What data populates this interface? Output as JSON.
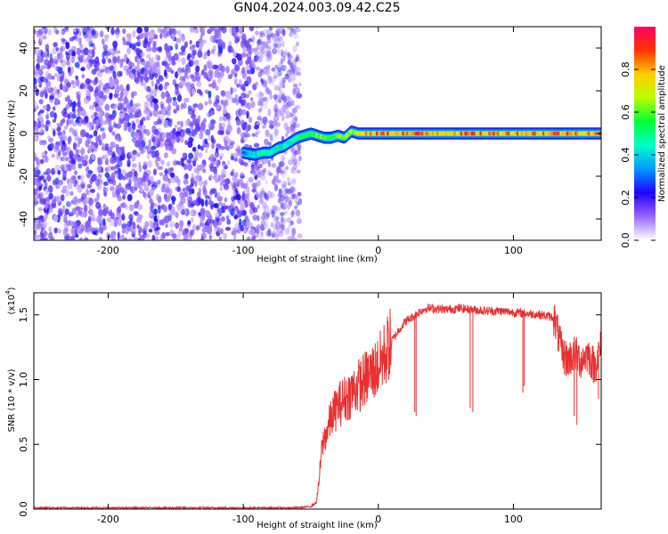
{
  "title": "GN04.2024.003.09.42.C25",
  "chart_data": [
    {
      "type": "heatmap",
      "name": "spectrogram",
      "xlabel": "Height of straight line (km)",
      "ylabel": "Frequency (Hz)",
      "xlim": [
        -255,
        165
      ],
      "ylim": [
        -50,
        50
      ],
      "x_ticks": [
        -200,
        -100,
        0,
        100
      ],
      "y_ticks": [
        40,
        20,
        0,
        -20,
        -40
      ],
      "noise_region": {
        "x": [
          -255,
          -63
        ],
        "note": "scattered low-amplitude violet speckle across all frequencies"
      },
      "carrier_track": {
        "x": [
          -100,
          -92,
          -85,
          -80,
          -75,
          -70,
          -65,
          -60,
          -55,
          -50,
          -45,
          -40,
          -35,
          -30,
          -25,
          -20,
          -15,
          -10,
          -5,
          0,
          20,
          40,
          60,
          80,
          100,
          120,
          140,
          165
        ],
        "y": [
          -9,
          -10,
          -9,
          -9,
          -7,
          -6,
          -4,
          -2,
          -1,
          0,
          -1,
          -2,
          -2,
          -1,
          -2,
          1,
          0,
          0,
          0,
          0,
          0,
          0,
          0,
          0,
          0,
          0,
          0,
          0
        ],
        "amplitude": [
          0.3,
          0.45,
          0.55,
          0.55,
          0.5,
          0.45,
          0.5,
          0.6,
          0.6,
          0.65,
          0.7,
          0.7,
          0.65,
          0.7,
          0.7,
          0.75,
          0.8,
          0.8,
          0.85,
          0.9,
          0.9,
          0.9,
          0.9,
          0.9,
          0.9,
          0.9,
          0.9,
          0.9
        ]
      },
      "colorbar": {
        "label": "Normalized spectral amplitude",
        "range": [
          0,
          1
        ],
        "ticks": [
          "0.0",
          "0.2",
          "0.4",
          "0.6",
          "0.8"
        ],
        "colors": [
          "#ffffff",
          "#9966ff",
          "#2200ff",
          "#0099ff",
          "#00ffcc",
          "#00ff33",
          "#bbff00",
          "#ffcc00",
          "#ff3300",
          "#ff0066"
        ]
      }
    },
    {
      "type": "line",
      "name": "snr",
      "xlabel": "Height of straight line (km)",
      "ylabel": "SNR (10 * v/v)",
      "y_multiplier": "(x10",
      "y_multiplier_exp": "4",
      "xlim": [
        -255,
        165
      ],
      "ylim": [
        0,
        1.67
      ],
      "x_ticks": [
        -200,
        -100,
        0,
        100
      ],
      "y_ticks": [
        "0.0",
        "0.5",
        "1.0",
        "1.5"
      ],
      "line_color": "#e83030",
      "series": [
        {
          "x": [
            -255,
            -200,
            -150,
            -100,
            -60,
            -50,
            -46,
            -44,
            -42,
            -40,
            -38,
            -35,
            -30,
            -25,
            -20,
            -15,
            -10,
            -5,
            0,
            5,
            10,
            15,
            20,
            25,
            30,
            35,
            40,
            50,
            60,
            70,
            80,
            90,
            100,
            110,
            120,
            130,
            133,
            136,
            140,
            145,
            150,
            155,
            160,
            165
          ],
          "y": [
            0.01,
            0.01,
            0.01,
            0.01,
            0.01,
            0.02,
            0.05,
            0.2,
            0.45,
            0.55,
            0.6,
            0.7,
            0.8,
            0.85,
            0.9,
            0.95,
            1.0,
            1.05,
            1.1,
            1.2,
            1.3,
            1.38,
            1.45,
            1.48,
            1.52,
            1.55,
            1.55,
            1.54,
            1.55,
            1.54,
            1.53,
            1.53,
            1.52,
            1.51,
            1.5,
            1.48,
            1.35,
            1.2,
            1.15,
            1.2,
            1.15,
            1.2,
            1.1,
            1.25
          ],
          "dips": [
            [
              -10,
              0.95
            ],
            [
              0,
              1.08
            ],
            [
              27,
              0.75
            ],
            [
              28,
              0.72
            ],
            [
              68,
              0.78
            ],
            [
              70,
              0.75
            ],
            [
              107,
              0.9
            ],
            [
              108,
              0.95
            ],
            [
              145,
              0.72
            ],
            [
              147,
              0.65
            ],
            [
              163,
              0.85
            ]
          ]
        }
      ]
    }
  ]
}
